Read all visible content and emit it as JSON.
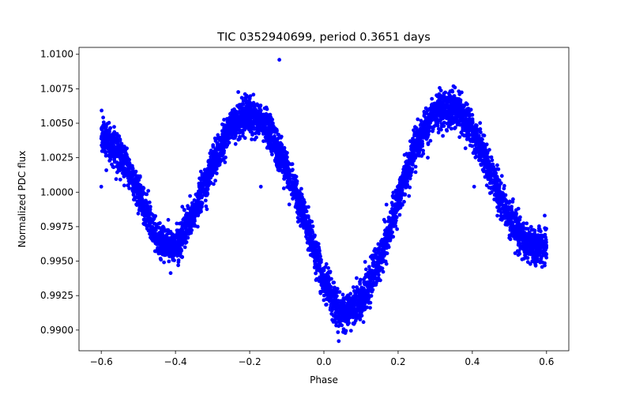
{
  "chart_data": {
    "type": "scatter",
    "title": "TIC 0352940699, period 0.3651 days",
    "xlabel": "Phase",
    "ylabel": "Normalized PDC flux",
    "xlim": [
      -0.66,
      0.66
    ],
    "ylim": [
      0.9885,
      1.0105
    ],
    "x_ticks": [
      -0.6,
      -0.4,
      -0.2,
      0.0,
      0.2,
      0.4,
      0.6
    ],
    "x_tick_labels": [
      "−0.6",
      "−0.4",
      "−0.2",
      "0.0",
      "0.2",
      "0.4",
      "0.6"
    ],
    "y_ticks": [
      0.99,
      0.9925,
      0.995,
      0.9975,
      1.0,
      1.0025,
      1.005,
      1.0075,
      1.01
    ],
    "y_tick_labels": [
      "0.9900",
      "0.9925",
      "0.9950",
      "0.9975",
      "1.0000",
      "1.0025",
      "1.0050",
      "1.0075",
      "1.0100"
    ],
    "grid": false,
    "series": [
      {
        "color": "#0000ff",
        "marker": "circle",
        "phase_range": [
          -0.6,
          0.6
        ],
        "trend": {
          "phase": [
            -0.6,
            -0.55,
            -0.5,
            -0.45,
            -0.4,
            -0.35,
            -0.3,
            -0.25,
            -0.2,
            -0.15,
            -0.1,
            -0.05,
            0.0,
            0.05,
            0.1,
            0.15,
            0.2,
            0.25,
            0.3,
            0.35,
            0.4,
            0.45,
            0.5,
            0.55,
            0.6
          ],
          "flux": [
            1.0042,
            1.0028,
            1.0,
            0.9965,
            0.996,
            0.9985,
            1.002,
            1.0048,
            1.0057,
            1.0045,
            1.0015,
            0.998,
            0.9935,
            0.991,
            0.992,
            0.995,
            0.9995,
            1.0035,
            1.0058,
            1.0062,
            1.0045,
            1.0015,
            0.998,
            0.9962,
            0.996
          ]
        },
        "scatter_sigma": 0.0008,
        "n_points": 5500
      }
    ],
    "outliers": [
      {
        "x": -0.12,
        "y": 1.0096
      },
      {
        "x": -0.17,
        "y": 1.0004
      },
      {
        "x": -0.6,
        "y": 1.0004
      },
      {
        "x": 0.595,
        "y": 0.9983
      },
      {
        "x": 0.405,
        "y": 1.0004
      },
      {
        "x": -0.34,
        "y": 0.9975
      },
      {
        "x": 0.28,
        "y": 1.0025
      },
      {
        "x": 0.04,
        "y": 0.9892
      }
    ]
  }
}
